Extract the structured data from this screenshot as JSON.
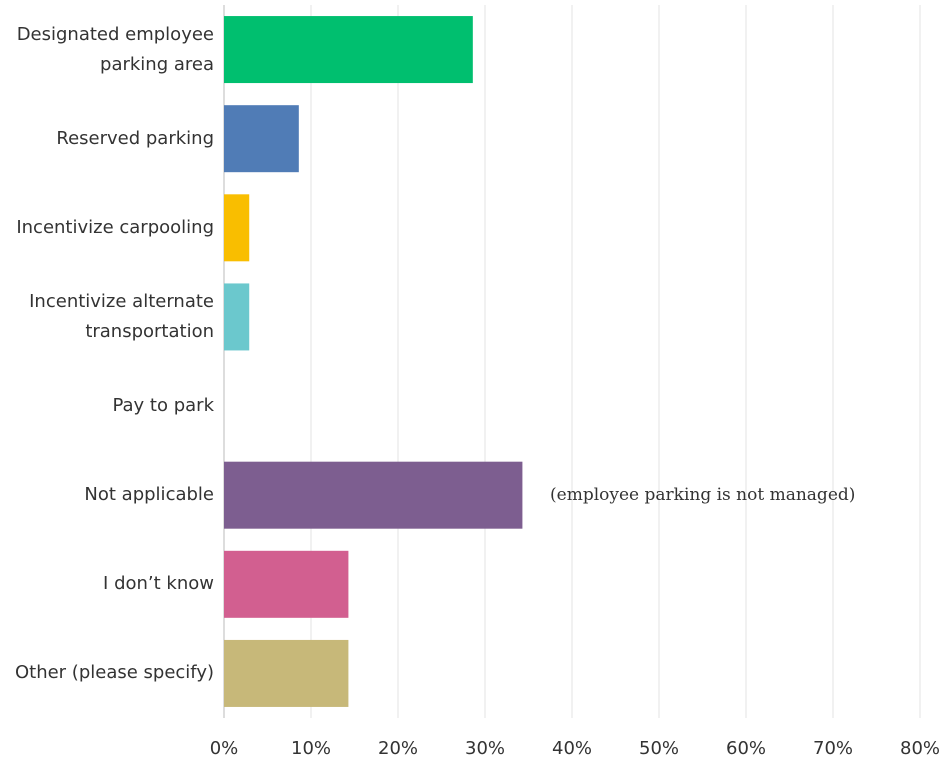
{
  "chart_data": {
    "type": "barh",
    "categories": [
      "Designated employee parking area",
      "Reserved parking",
      "Incentivize carpooling",
      "Incentivize alternate transportation",
      "Pay to park",
      "Not applicable",
      "I don’t know",
      "Other (please specify)"
    ],
    "values": [
      28.6,
      8.6,
      2.9,
      2.9,
      0,
      34.3,
      14.3,
      14.3
    ],
    "colors": [
      "#00bf6f",
      "#507cb6",
      "#f9be00",
      "#6bc8cd",
      "#a3a3a3",
      "#7d5e90",
      "#d25f90",
      "#c7b879"
    ],
    "xlim": [
      0,
      80
    ],
    "xticks": [
      {
        "value": 0,
        "label": "0%"
      },
      {
        "value": 10,
        "label": "10%"
      },
      {
        "value": 20,
        "label": "20%"
      },
      {
        "value": 30,
        "label": "30%"
      },
      {
        "value": 40,
        "label": "40%"
      },
      {
        "value": 50,
        "label": "50%"
      },
      {
        "value": 60,
        "label": "60%"
      },
      {
        "value": 70,
        "label": "70%"
      },
      {
        "value": 80,
        "label": "80%"
      }
    ],
    "grid": true,
    "annotations": [
      {
        "text": "(employee parking is not managed)",
        "category": 5
      }
    ]
  }
}
